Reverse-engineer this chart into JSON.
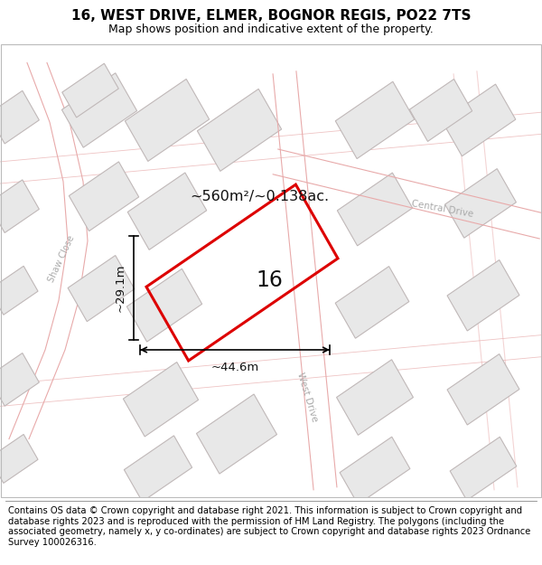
{
  "title": "16, WEST DRIVE, ELMER, BOGNOR REGIS, PO22 7TS",
  "subtitle": "Map shows position and indicative extent of the property.",
  "footer": "Contains OS data © Crown copyright and database right 2021. This information is subject to Crown copyright and database rights 2023 and is reproduced with the permission of HM Land Registry. The polygons (including the associated geometry, namely x, y co-ordinates) are subject to Crown copyright and database rights 2023 Ordnance Survey 100026316.",
  "area_label": "~560m²/~0.138ac.",
  "width_label": "~44.6m",
  "height_label": "~29.1m",
  "property_number": "16",
  "map_bg": "#f7f7f7",
  "road_line_color": "#e8aaaa",
  "building_fill": "#e8e8e8",
  "building_edge": "#c0b8b8",
  "road_label_color": "#aaaaaa",
  "property_outline": "#dd0000",
  "annotation_color": "#111111",
  "title_fontsize": 11,
  "subtitle_fontsize": 9,
  "footer_fontsize": 7.2,
  "ang": 32
}
